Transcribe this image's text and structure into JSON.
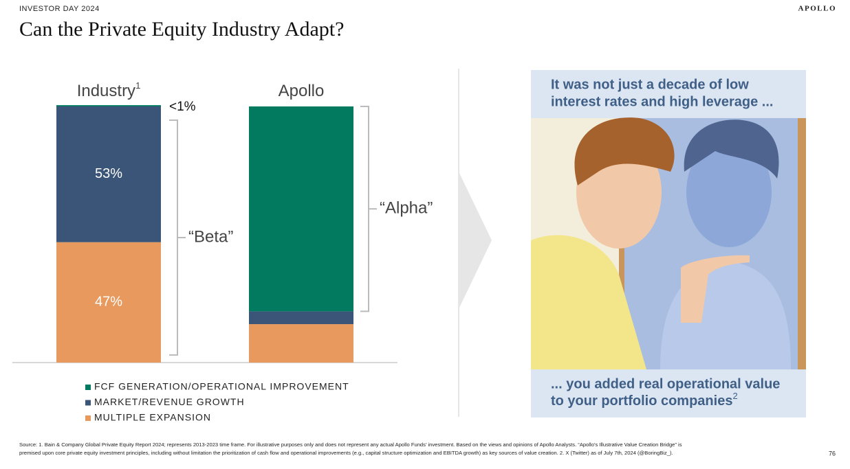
{
  "header": {
    "event": "INVESTOR DAY 2024",
    "brand": "APOLLO",
    "title": "Can the Private Equity Industry Adapt?"
  },
  "chart_data": {
    "type": "stacked-bar",
    "categories": [
      "Industry",
      "Apollo"
    ],
    "category_footnote": "1",
    "series": [
      {
        "name": "FCF GENERATION/OPERATIONAL IMPROVEMENT",
        "color": "#017a5f",
        "values": [
          0.5,
          80
        ],
        "value_labels": [
          "<1%",
          null
        ]
      },
      {
        "name": "MARKET/REVENUE GROWTH",
        "color": "#3a5577",
        "values": [
          53,
          5
        ],
        "value_labels": [
          "53%",
          null
        ]
      },
      {
        "name": "MULTIPLE EXPANSION",
        "color": "#e8995d",
        "values": [
          47,
          15
        ],
        "value_labels": [
          "47%",
          null
        ]
      }
    ],
    "annotations": [
      "“Beta”",
      "“Alpha”"
    ],
    "ylim": [
      0,
      100
    ]
  },
  "panel": {
    "top_lines": [
      "It was not just a decade of low",
      "interest rates and high leverage ..."
    ],
    "bottom_lines": [
      "... you added real operational value",
      "to your portfolio companies"
    ],
    "bottom_footnote": "2"
  },
  "footer": {
    "source_lines": [
      "Source: 1. Bain & Company Global Private Equity Report 2024; represents 2013-2023 time frame. For illustrative purposes only and does not represent any actual Apollo Funds’ investment. Based on the views and opinions of Apollo Analysts. “Apollo’s Illustrative Value Creation Bridge” is",
      "premised upon core private equity investment principles, including without limitation the prioritization of cash flow and operational improvements (e.g., capital structure optimization and EBITDA growth) as key sources of value creation. 2. X (Twitter) as of July 7th, 2024 (@BoringBiz_)."
    ],
    "page": "76"
  }
}
